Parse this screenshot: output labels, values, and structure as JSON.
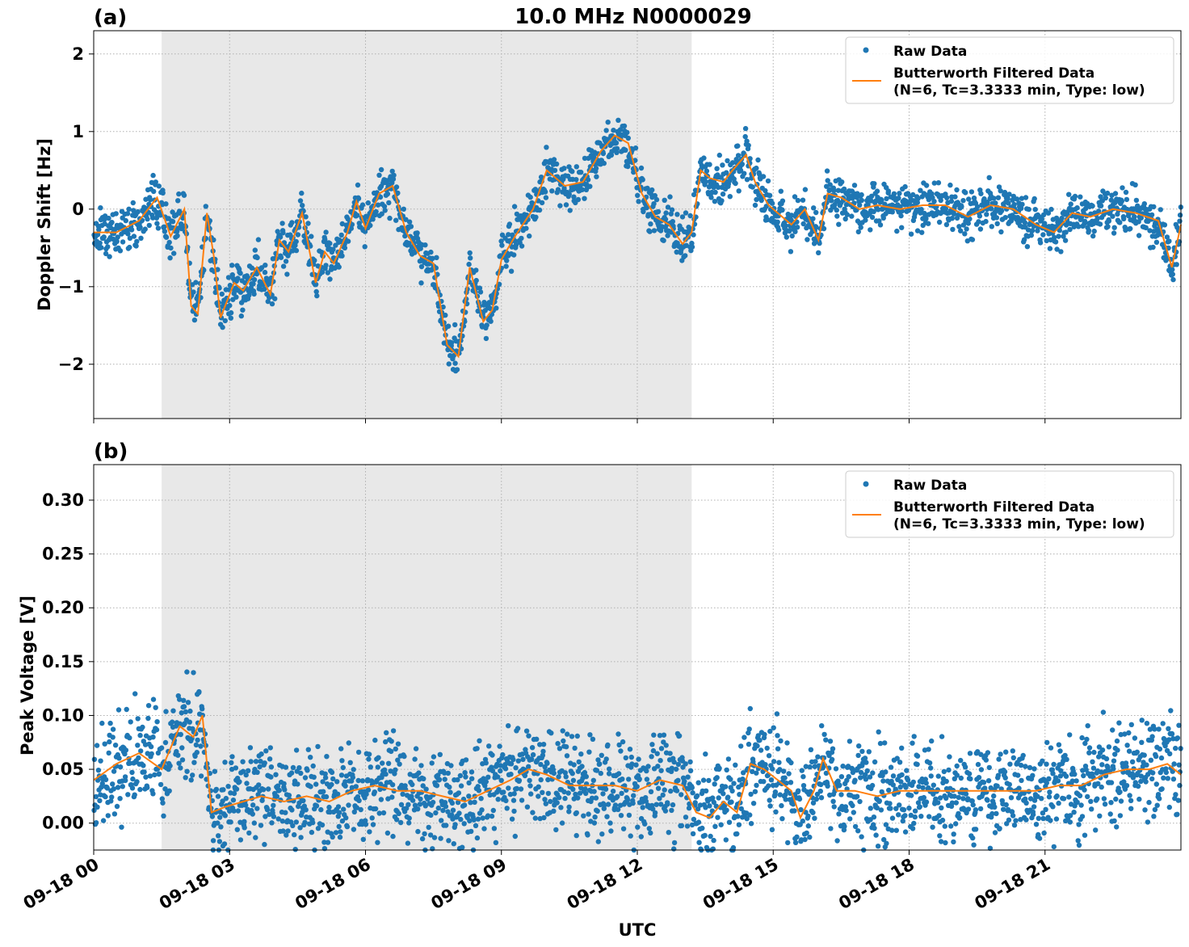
{
  "figure": {
    "title": "10.0 MHz N0000029",
    "xlabel": "UTC",
    "shade_color": "#e8e8e8",
    "raw_color": "#1f77b4",
    "filtered_color": "#ff7f0e",
    "x_tick_labels": [
      "09-18 00",
      "09-18 03",
      "09-18 06",
      "09-18 09",
      "09-18 12",
      "09-18 15",
      "09-18 18",
      "09-18 21"
    ],
    "legend": {
      "raw": "Raw Data",
      "filtered_line1": "Butterworth Filtered Data",
      "filtered_line2": "(N=6, Tc=3.3333 min, Type: low)"
    }
  },
  "chart_data": [
    {
      "type": "scatter",
      "panel_label": "(a)",
      "ylabel": "Doppler Shift [Hz]",
      "xlim_hours": [
        0,
        24
      ],
      "ylim": [
        -2.7,
        2.3
      ],
      "y_ticks": [
        -2,
        -1,
        0,
        1,
        2
      ],
      "y_tick_labels": [
        "−2",
        "−1",
        "0",
        "1",
        "2"
      ],
      "grid": true,
      "legend_position": "upper-right",
      "shaded_interval_hours": [
        1.5,
        13.2
      ],
      "series": [
        {
          "name": "Raw Data",
          "style": "points",
          "spread": 0.22,
          "x": [
            0,
            0.5,
            1.0,
            1.4,
            1.7,
            2.0,
            2.15,
            2.3,
            2.5,
            2.65,
            2.8,
            3.1,
            3.3,
            3.6,
            3.9,
            4.1,
            4.3,
            4.6,
            4.9,
            5.1,
            5.3,
            5.6,
            5.8,
            6.0,
            6.3,
            6.6,
            6.9,
            7.2,
            7.5,
            7.8,
            8.05,
            8.3,
            8.6,
            8.8,
            9.0,
            9.3,
            9.7,
            10.0,
            10.4,
            10.8,
            11.2,
            11.5,
            11.8,
            12.1,
            12.4,
            12.7,
            13.0,
            13.2,
            13.4,
            13.6,
            13.9,
            14.1,
            14.4,
            14.6,
            14.9,
            15.1,
            15.4,
            15.7,
            16.0,
            16.2,
            16.5,
            16.9,
            17.3,
            17.8,
            18.3,
            18.8,
            19.3,
            19.8,
            20.3,
            20.8,
            21.2,
            21.6,
            22.0,
            22.5,
            23.0,
            23.5,
            23.8,
            24.0
          ],
          "y": [
            -0.3,
            -0.3,
            -0.15,
            0.15,
            -0.35,
            0.0,
            -1.25,
            -1.35,
            -0.05,
            -0.6,
            -1.4,
            -0.95,
            -1.05,
            -0.75,
            -1.1,
            -0.4,
            -0.55,
            -0.05,
            -0.95,
            -0.55,
            -0.7,
            -0.3,
            0.1,
            -0.25,
            0.2,
            0.3,
            -0.3,
            -0.6,
            -0.7,
            -1.75,
            -1.9,
            -0.75,
            -1.45,
            -1.3,
            -0.65,
            -0.35,
            0.0,
            0.5,
            0.3,
            0.35,
            0.75,
            0.95,
            0.85,
            0.2,
            -0.1,
            -0.2,
            -0.45,
            -0.3,
            0.5,
            0.4,
            0.35,
            0.5,
            0.7,
            0.35,
            0.05,
            -0.05,
            -0.2,
            0.0,
            -0.4,
            0.2,
            0.15,
            0.0,
            0.05,
            0.0,
            0.05,
            0.05,
            -0.1,
            0.05,
            0.0,
            -0.2,
            -0.3,
            -0.05,
            -0.1,
            0.0,
            -0.05,
            -0.15,
            -0.75,
            -0.2
          ]
        },
        {
          "name": "Butterworth Filtered Data (N=6, Tc=3.3333 min, Type: low)",
          "style": "line",
          "x": [
            0,
            0.5,
            1.0,
            1.4,
            1.7,
            2.0,
            2.15,
            2.3,
            2.5,
            2.65,
            2.8,
            3.1,
            3.3,
            3.6,
            3.9,
            4.1,
            4.3,
            4.6,
            4.9,
            5.1,
            5.3,
            5.6,
            5.8,
            6.0,
            6.3,
            6.6,
            6.9,
            7.2,
            7.5,
            7.8,
            8.05,
            8.3,
            8.6,
            8.8,
            9.0,
            9.3,
            9.7,
            10.0,
            10.4,
            10.8,
            11.2,
            11.5,
            11.8,
            12.1,
            12.4,
            12.7,
            13.0,
            13.2,
            13.4,
            13.6,
            13.9,
            14.1,
            14.4,
            14.6,
            14.9,
            15.1,
            15.4,
            15.7,
            16.0,
            16.2,
            16.5,
            16.9,
            17.3,
            17.8,
            18.3,
            18.8,
            19.3,
            19.8,
            20.3,
            20.8,
            21.2,
            21.6,
            22.0,
            22.5,
            23.0,
            23.5,
            23.8,
            24.0
          ],
          "y": [
            -0.3,
            -0.3,
            -0.15,
            0.15,
            -0.35,
            0.0,
            -1.25,
            -1.35,
            -0.05,
            -0.6,
            -1.4,
            -0.95,
            -1.05,
            -0.75,
            -1.1,
            -0.4,
            -0.55,
            -0.05,
            -0.95,
            -0.55,
            -0.7,
            -0.3,
            0.1,
            -0.25,
            0.2,
            0.3,
            -0.3,
            -0.6,
            -0.7,
            -1.75,
            -1.9,
            -0.75,
            -1.45,
            -1.3,
            -0.65,
            -0.35,
            0.0,
            0.5,
            0.3,
            0.35,
            0.75,
            0.95,
            0.85,
            0.2,
            -0.1,
            -0.2,
            -0.45,
            -0.3,
            0.5,
            0.4,
            0.35,
            0.5,
            0.7,
            0.35,
            0.05,
            -0.05,
            -0.2,
            0.0,
            -0.4,
            0.2,
            0.15,
            0.0,
            0.05,
            0.0,
            0.05,
            0.05,
            -0.1,
            0.05,
            0.0,
            -0.2,
            -0.3,
            -0.05,
            -0.1,
            0.0,
            -0.05,
            -0.15,
            -0.75,
            -0.2
          ]
        }
      ]
    },
    {
      "type": "scatter",
      "panel_label": "(b)",
      "ylabel": "Peak Voltage [V]",
      "xlim_hours": [
        0,
        24
      ],
      "ylim": [
        -0.025,
        0.333
      ],
      "y_ticks": [
        0.0,
        0.05,
        0.1,
        0.15,
        0.2,
        0.25,
        0.3
      ],
      "y_tick_labels": [
        "0.00",
        "0.05",
        "0.10",
        "0.15",
        "0.20",
        "0.25",
        "0.30"
      ],
      "grid": true,
      "legend_position": "upper-right",
      "shaded_interval_hours": [
        1.5,
        13.2
      ],
      "series": [
        {
          "name": "Raw Data",
          "style": "points",
          "spread": 0.035,
          "x": [
            0,
            0.5,
            1.0,
            1.5,
            1.9,
            2.2,
            2.4,
            2.6,
            2.9,
            3.3,
            3.7,
            4.2,
            4.7,
            5.2,
            5.7,
            6.2,
            6.7,
            7.2,
            7.7,
            8.2,
            8.7,
            9.2,
            9.6,
            10.0,
            10.5,
            11.0,
            11.5,
            12.0,
            12.5,
            13.0,
            13.3,
            13.6,
            13.9,
            14.2,
            14.5,
            14.8,
            15.1,
            15.4,
            15.6,
            15.9,
            16.1,
            16.4,
            16.8,
            17.3,
            17.8,
            18.3,
            18.8,
            19.3,
            19.8,
            20.3,
            20.8,
            21.3,
            21.8,
            22.3,
            22.8,
            23.3,
            23.7,
            24.0
          ],
          "y": [
            0.04,
            0.055,
            0.065,
            0.05,
            0.09,
            0.08,
            0.1,
            0.01,
            0.015,
            0.02,
            0.025,
            0.02,
            0.025,
            0.02,
            0.03,
            0.035,
            0.03,
            0.03,
            0.025,
            0.02,
            0.03,
            0.04,
            0.05,
            0.045,
            0.035,
            0.035,
            0.035,
            0.03,
            0.04,
            0.035,
            0.01,
            0.005,
            0.02,
            0.01,
            0.055,
            0.05,
            0.04,
            0.03,
            0.005,
            0.03,
            0.06,
            0.03,
            0.03,
            0.025,
            0.03,
            0.03,
            0.03,
            0.03,
            0.03,
            0.03,
            0.03,
            0.035,
            0.035,
            0.045,
            0.05,
            0.05,
            0.055,
            0.045
          ]
        },
        {
          "name": "Butterworth Filtered Data (N=6, Tc=3.3333 min, Type: low)",
          "style": "line",
          "x": [
            0,
            0.5,
            1.0,
            1.5,
            1.9,
            2.2,
            2.4,
            2.6,
            2.9,
            3.3,
            3.7,
            4.2,
            4.7,
            5.2,
            5.7,
            6.2,
            6.7,
            7.2,
            7.7,
            8.2,
            8.7,
            9.2,
            9.6,
            10.0,
            10.5,
            11.0,
            11.5,
            12.0,
            12.5,
            13.0,
            13.3,
            13.6,
            13.9,
            14.2,
            14.5,
            14.8,
            15.1,
            15.4,
            15.6,
            15.9,
            16.1,
            16.4,
            16.8,
            17.3,
            17.8,
            18.3,
            18.8,
            19.3,
            19.8,
            20.3,
            20.8,
            21.3,
            21.8,
            22.3,
            22.8,
            23.3,
            23.7,
            24.0
          ],
          "y": [
            0.04,
            0.055,
            0.065,
            0.05,
            0.09,
            0.08,
            0.1,
            0.01,
            0.015,
            0.02,
            0.025,
            0.02,
            0.025,
            0.02,
            0.03,
            0.035,
            0.03,
            0.03,
            0.025,
            0.02,
            0.03,
            0.04,
            0.05,
            0.045,
            0.035,
            0.035,
            0.035,
            0.03,
            0.04,
            0.035,
            0.01,
            0.005,
            0.02,
            0.01,
            0.055,
            0.05,
            0.04,
            0.03,
            0.005,
            0.03,
            0.06,
            0.03,
            0.03,
            0.025,
            0.03,
            0.03,
            0.03,
            0.03,
            0.03,
            0.03,
            0.03,
            0.035,
            0.035,
            0.045,
            0.05,
            0.05,
            0.055,
            0.045
          ]
        }
      ]
    }
  ]
}
